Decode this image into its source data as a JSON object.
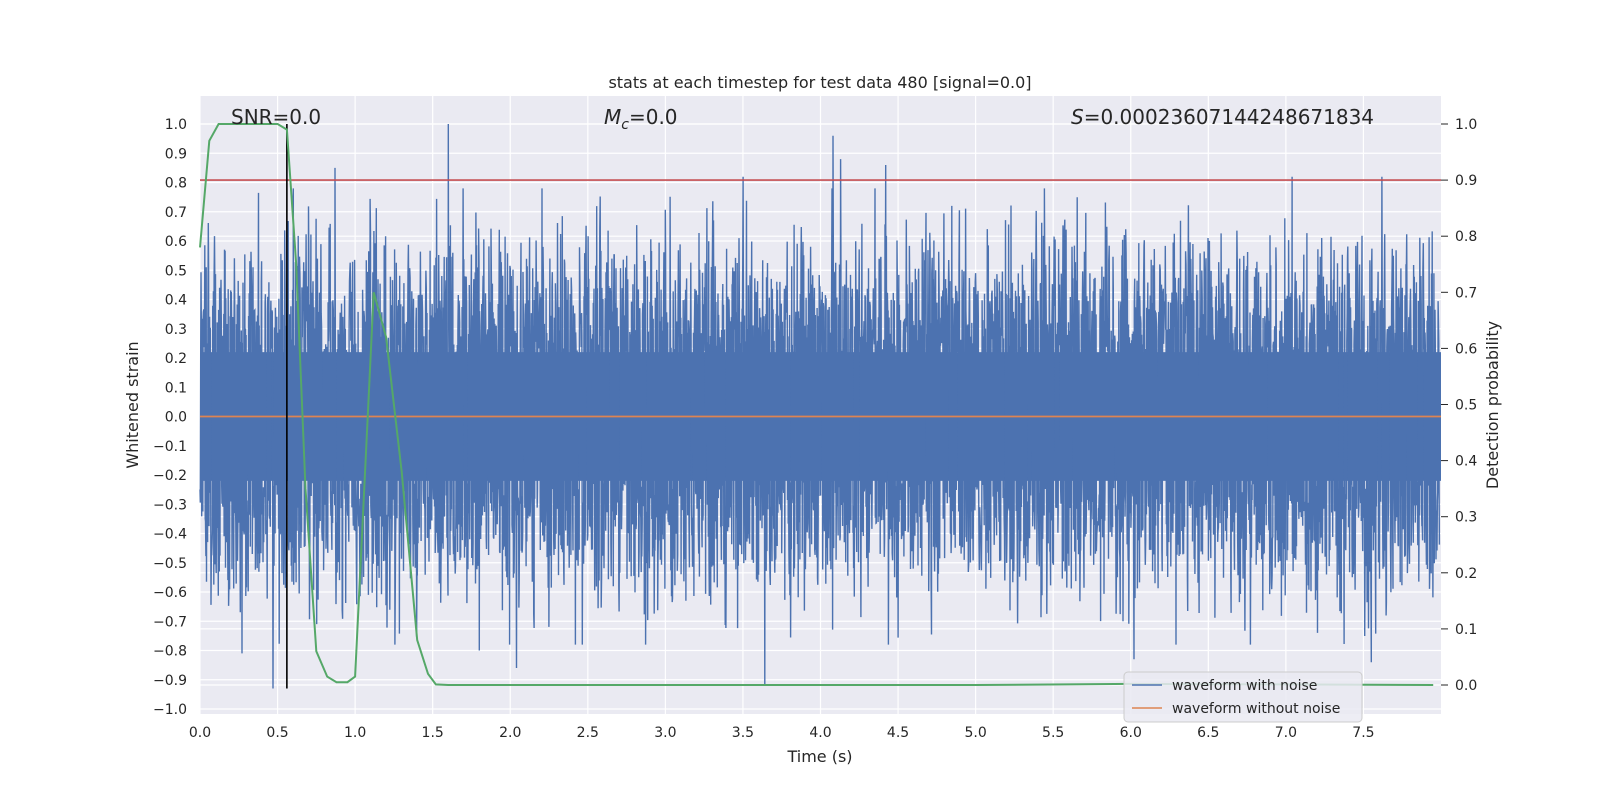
{
  "chart_data": {
    "type": "line",
    "title": "stats at each timestep for test data 480 [signal=0.0]",
    "xlabel": "Time (s)",
    "ylabel": "Whitened strain",
    "y2label": "Detection probability",
    "xlim": [
      0.0,
      8.0
    ],
    "ylim": [
      -1.0,
      1.0
    ],
    "y2lim": [
      0.0,
      1.0
    ],
    "x_ticks": [
      0.0,
      0.5,
      1.0,
      1.5,
      2.0,
      2.5,
      3.0,
      3.5,
      4.0,
      4.5,
      5.0,
      5.5,
      6.0,
      6.5,
      7.0,
      7.5
    ],
    "x_tick_labels": [
      "0.0",
      "0.5",
      "1.0",
      "1.5",
      "2.0",
      "2.5",
      "3.0",
      "3.5",
      "4.0",
      "4.5",
      "5.0",
      "5.5",
      "6.0",
      "6.5",
      "7.0",
      "7.5"
    ],
    "y_ticks": [
      1.0,
      0.9,
      0.8,
      0.7,
      0.6,
      0.5,
      0.4,
      0.3,
      0.2,
      0.1,
      0.0,
      -0.1,
      -0.2,
      -0.3,
      -0.4,
      -0.5,
      -0.6,
      -0.7,
      -0.8,
      -0.9,
      -1.0
    ],
    "y_tick_labels": [
      "1.0",
      "0.9",
      "0.8",
      "0.7",
      "0.6",
      "0.5",
      "0.4",
      "0.3",
      "0.2",
      "0.1",
      "0.0",
      "−0.1",
      "−0.2",
      "−0.3",
      "−0.4",
      "−0.5",
      "−0.6",
      "−0.7",
      "−0.8",
      "−0.9",
      "−1.0"
    ],
    "y2_ticks": [
      1.0,
      0.9,
      0.8,
      0.7,
      0.6,
      0.5,
      0.4,
      0.3,
      0.2,
      0.1,
      0.0
    ],
    "y2_tick_labels": [
      "1.0",
      "0.9",
      "0.8",
      "0.7",
      "0.6",
      "0.5",
      "0.4",
      "0.3",
      "0.2",
      "0.1",
      "0.0"
    ],
    "grid": true,
    "annotations": {
      "snr_label": "SNR=0.0",
      "mc_symbol": "M",
      "mc_subscript": "c",
      "mc_value": "=0.0",
      "s_symbol": "S",
      "s_value": "=0.00023607144248671834"
    },
    "noise_waveform": {
      "name": "waveform with noise",
      "color": "#4c72b0",
      "typical_envelope": [
        -0.55,
        0.55
      ],
      "spikes": [
        {
          "x": 0.47,
          "y": -0.93
        },
        {
          "x": 0.27,
          "y": -0.81
        },
        {
          "x": 0.87,
          "y": 0.85
        },
        {
          "x": 1.6,
          "y": 1.0
        },
        {
          "x": 3.5,
          "y": 0.82
        },
        {
          "x": 3.64,
          "y": -0.92
        },
        {
          "x": 4.08,
          "y": 0.96
        },
        {
          "x": 4.13,
          "y": 0.88
        },
        {
          "x": 4.42,
          "y": 0.86
        },
        {
          "x": 2.04,
          "y": -0.86
        },
        {
          "x": 1.8,
          "y": -0.8
        },
        {
          "x": 6.02,
          "y": -0.83
        },
        {
          "x": 7.04,
          "y": 0.82
        },
        {
          "x": 7.62,
          "y": 0.82
        },
        {
          "x": 7.55,
          "y": -0.84
        },
        {
          "x": 2.42,
          "y": -0.78
        }
      ]
    },
    "clean_waveform": {
      "name": "waveform without noise",
      "color": "#dd8452",
      "value": 0.0
    },
    "detection_probability": {
      "color": "#55a868",
      "x": [
        0.0,
        0.06,
        0.12,
        0.2,
        0.3,
        0.4,
        0.5,
        0.56,
        0.62,
        0.68,
        0.75,
        0.82,
        0.88,
        0.95,
        1.0,
        1.05,
        1.12,
        1.2,
        1.3,
        1.4,
        1.47,
        1.52,
        1.6,
        2.0,
        3.0,
        4.0,
        5.0,
        6.0,
        7.0,
        7.95
      ],
      "y": [
        0.78,
        0.97,
        1.0,
        1.0,
        1.0,
        1.0,
        1.0,
        0.99,
        0.75,
        0.35,
        0.06,
        0.015,
        0.005,
        0.005,
        0.015,
        0.3,
        0.7,
        0.62,
        0.38,
        0.08,
        0.02,
        0.001,
        0.0,
        0.0,
        0.0,
        0.0,
        0.0,
        0.002,
        0.001,
        0.0
      ]
    },
    "threshold_line": {
      "color": "#c44e52",
      "value": 0.9,
      "axis": "y2"
    },
    "marker_line": {
      "color": "#000000",
      "x": 0.56,
      "y_from": -0.93,
      "y_to": 1.0
    },
    "legend": {
      "location": "lower-right",
      "entries": [
        "waveform with noise",
        "waveform without noise"
      ]
    }
  }
}
